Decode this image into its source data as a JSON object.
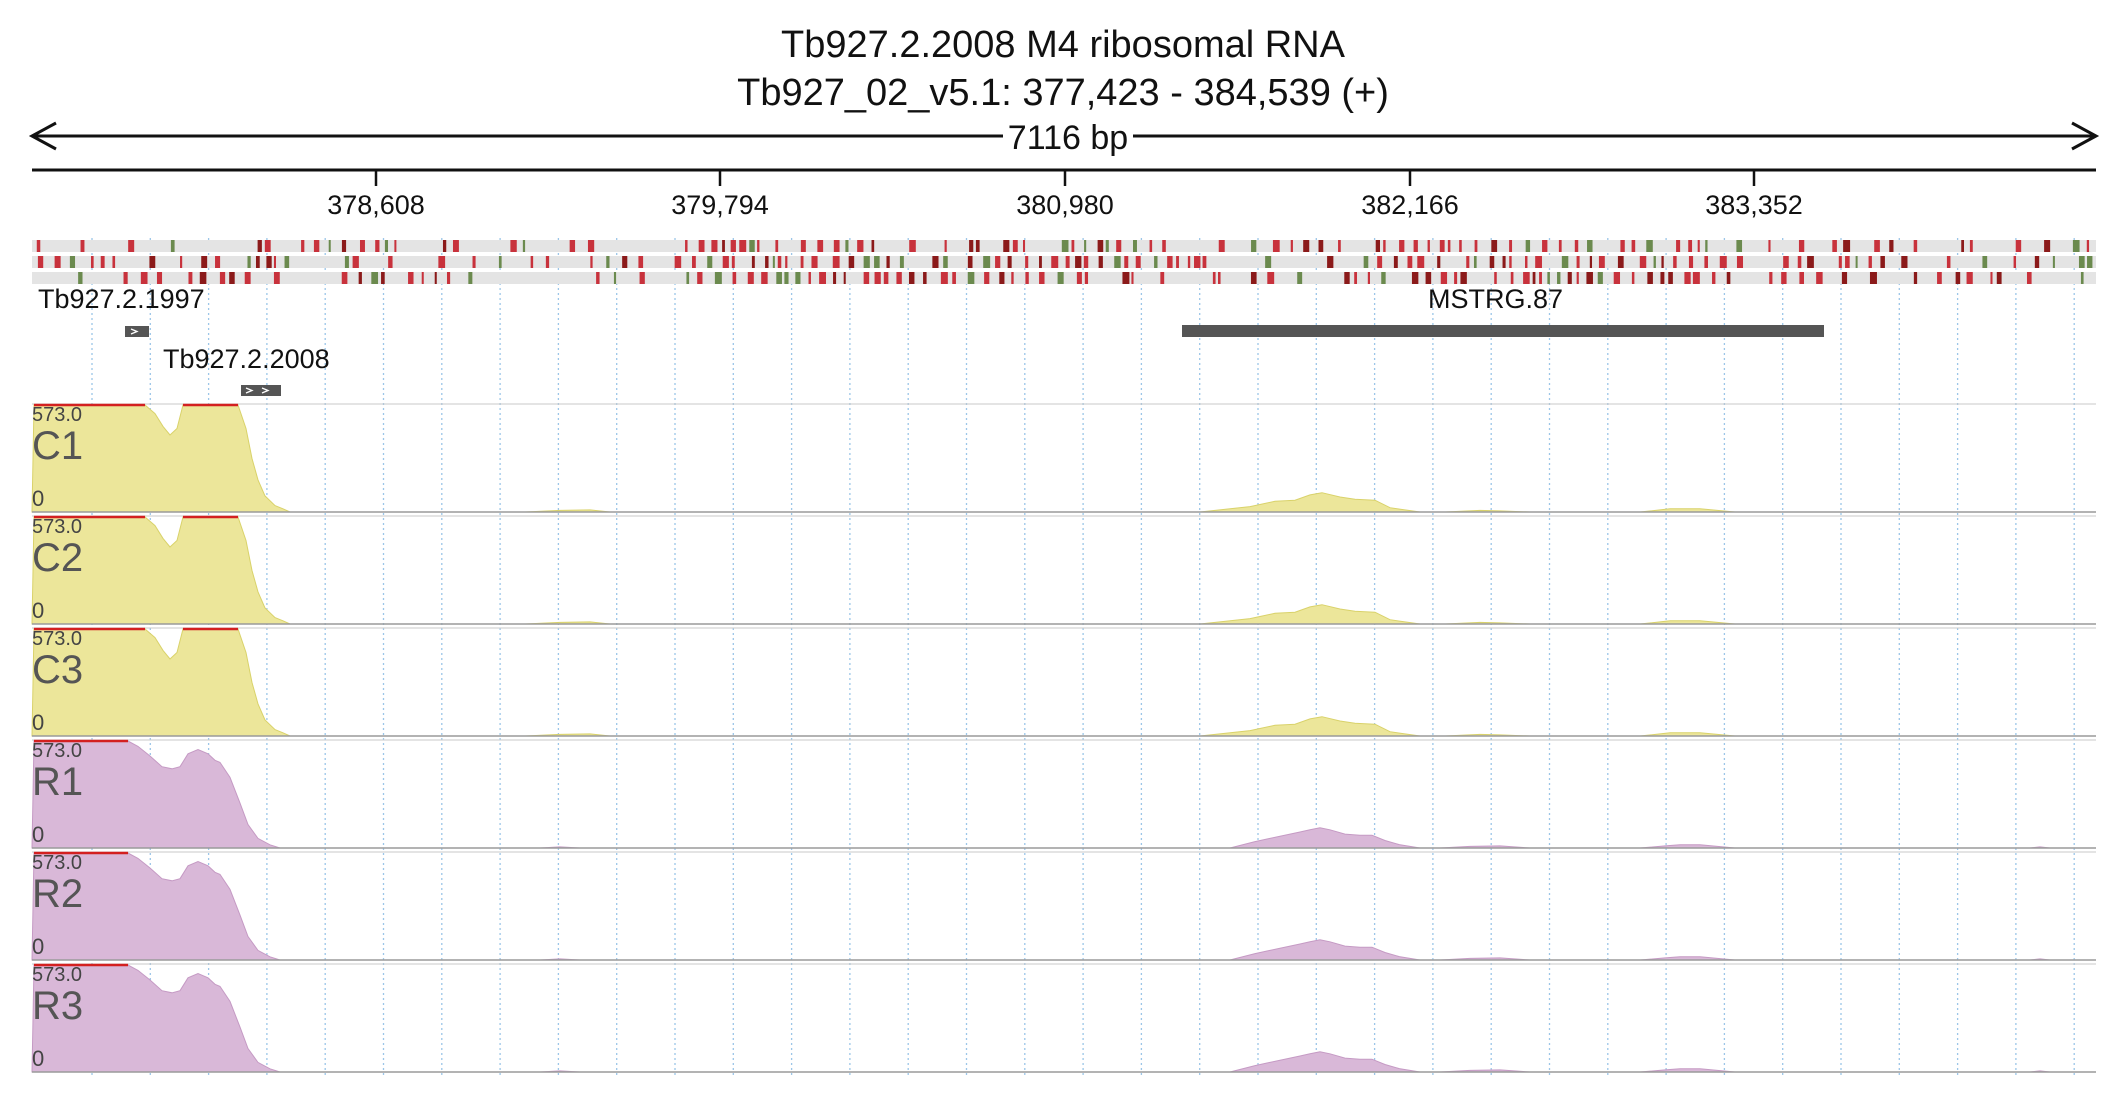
{
  "header": {
    "title": "Tb927.2.2008  M4 ribosomal RNA",
    "locus": "Tb927_02_v5.1: 377,423 - 384,539 (+)",
    "span": "7116 bp"
  },
  "ruler": {
    "ticks": [
      "378,608",
      "379,794",
      "380,980",
      "382,166",
      "383,352"
    ]
  },
  "genes": [
    {
      "name": "Tb927.2.1997",
      "strand": "+"
    },
    {
      "name": "Tb927.2.2008",
      "strand": "+"
    },
    {
      "name": "MSTRG.87"
    }
  ],
  "tracks": [
    {
      "name": "C1",
      "max": "573.0",
      "min": "0",
      "color": "#ece69a",
      "edge": "#d9d26a"
    },
    {
      "name": "C2",
      "max": "573.0",
      "min": "0",
      "color": "#ece69a",
      "edge": "#d9d26a"
    },
    {
      "name": "C3",
      "max": "573.0",
      "min": "0",
      "color": "#ece69a",
      "edge": "#d9d26a"
    },
    {
      "name": "R1",
      "max": "573.0",
      "min": "0",
      "color": "#d9b8d8",
      "edge": "#c59ac4"
    },
    {
      "name": "R2",
      "max": "573.0",
      "min": "0",
      "color": "#d9b8d8",
      "edge": "#c59ac4"
    },
    {
      "name": "R3",
      "max": "573.0",
      "min": "0",
      "color": "#d9b8d8",
      "edge": "#c59ac4"
    }
  ],
  "colors": {
    "clip_marker": "#d32020",
    "variant_red": "#c8323c",
    "variant_dark_red": "#8b1a1a",
    "variant_green": "#6b8a4e",
    "variant_background": "#e4e4e4",
    "gene_feature": "#555555",
    "grid": "#9cc6e8"
  }
}
